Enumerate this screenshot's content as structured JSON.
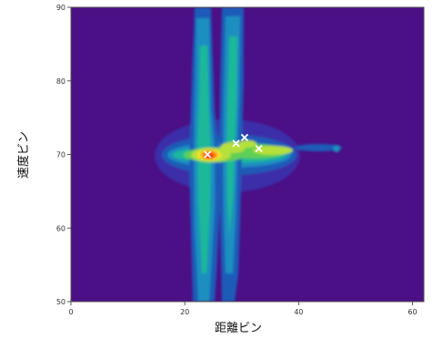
{
  "chart_data": {
    "type": "heatmap",
    "title": "",
    "xlabel": "距離ビン",
    "ylabel": "速度ビン",
    "xlim": [
      0,
      62
    ],
    "ylim": [
      50,
      90
    ],
    "x_ticks": [
      "0",
      "20",
      "40",
      "60"
    ],
    "y_ticks": [
      "50",
      "60",
      "70",
      "80",
      "90"
    ],
    "colors": {
      "background": "#4b0f86",
      "scale": [
        "#4b0f86",
        "#3a2fa8",
        "#1f5cb8",
        "#1b8fc0",
        "#1fb89a",
        "#5ecf55",
        "#b6e03a",
        "#f3e02a",
        "#ff8a1e",
        "#ff2a10"
      ]
    },
    "marker_color": "#ffffff",
    "detections": [
      {
        "x": 24,
        "y": 70.0
      },
      {
        "x": 29,
        "y": 71.5
      },
      {
        "x": 30.5,
        "y": 72.3
      },
      {
        "x": 33,
        "y": 70.8
      }
    ]
  }
}
